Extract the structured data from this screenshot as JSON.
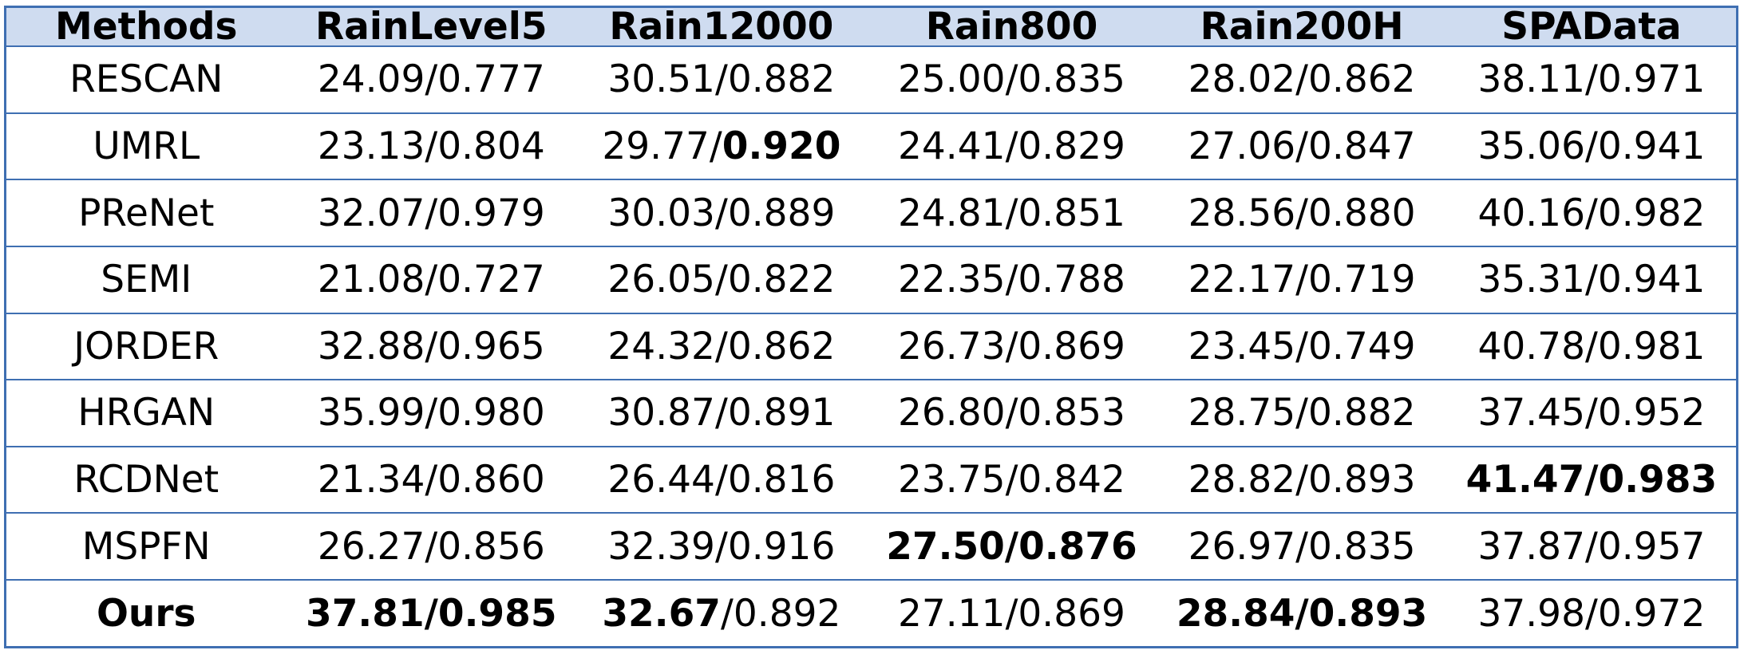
{
  "chart_data": {
    "type": "table",
    "columns": [
      "Methods",
      "RainLevel5",
      "Rain12000",
      "Rain800",
      "Rain200H",
      "SPAData"
    ],
    "rows": [
      {
        "method": "RESCAN",
        "cells": [
          {
            "psnr": "24.09",
            "ssim": "0.777",
            "bold_psnr": false,
            "bold_ssim": false
          },
          {
            "psnr": "30.51",
            "ssim": "0.882",
            "bold_psnr": false,
            "bold_ssim": false
          },
          {
            "psnr": "25.00",
            "ssim": "0.835",
            "bold_psnr": false,
            "bold_ssim": false
          },
          {
            "psnr": "28.02",
            "ssim": "0.862",
            "bold_psnr": false,
            "bold_ssim": false
          },
          {
            "psnr": "38.11",
            "ssim": "0.971",
            "bold_psnr": false,
            "bold_ssim": false
          }
        ]
      },
      {
        "method": "UMRL",
        "cells": [
          {
            "psnr": "23.13",
            "ssim": "0.804",
            "bold_psnr": false,
            "bold_ssim": false
          },
          {
            "psnr": "29.77",
            "ssim": "0.920",
            "bold_psnr": false,
            "bold_ssim": true
          },
          {
            "psnr": "24.41",
            "ssim": "0.829",
            "bold_psnr": false,
            "bold_ssim": false
          },
          {
            "psnr": "27.06",
            "ssim": "0.847",
            "bold_psnr": false,
            "bold_ssim": false
          },
          {
            "psnr": "35.06",
            "ssim": "0.941",
            "bold_psnr": false,
            "bold_ssim": false
          }
        ]
      },
      {
        "method": "PReNet",
        "cells": [
          {
            "psnr": "32.07",
            "ssim": "0.979",
            "bold_psnr": false,
            "bold_ssim": false
          },
          {
            "psnr": "30.03",
            "ssim": "0.889",
            "bold_psnr": false,
            "bold_ssim": false
          },
          {
            "psnr": "24.81",
            "ssim": "0.851",
            "bold_psnr": false,
            "bold_ssim": false
          },
          {
            "psnr": "28.56",
            "ssim": "0.880",
            "bold_psnr": false,
            "bold_ssim": false
          },
          {
            "psnr": "40.16",
            "ssim": "0.982",
            "bold_psnr": false,
            "bold_ssim": false
          }
        ]
      },
      {
        "method": "SEMI",
        "cells": [
          {
            "psnr": "21.08",
            "ssim": "0.727",
            "bold_psnr": false,
            "bold_ssim": false
          },
          {
            "psnr": "26.05",
            "ssim": "0.822",
            "bold_psnr": false,
            "bold_ssim": false
          },
          {
            "psnr": "22.35",
            "ssim": "0.788",
            "bold_psnr": false,
            "bold_ssim": false
          },
          {
            "psnr": "22.17",
            "ssim": "0.719",
            "bold_psnr": false,
            "bold_ssim": false
          },
          {
            "psnr": "35.31",
            "ssim": "0.941",
            "bold_psnr": false,
            "bold_ssim": false
          }
        ]
      },
      {
        "method": "JORDER",
        "cells": [
          {
            "psnr": "32.88",
            "ssim": "0.965",
            "bold_psnr": false,
            "bold_ssim": false
          },
          {
            "psnr": "24.32",
            "ssim": "0.862",
            "bold_psnr": false,
            "bold_ssim": false
          },
          {
            "psnr": "26.73",
            "ssim": "0.869",
            "bold_psnr": false,
            "bold_ssim": false
          },
          {
            "psnr": "23.45",
            "ssim": "0.749",
            "bold_psnr": false,
            "bold_ssim": false
          },
          {
            "psnr": "40.78",
            "ssim": "0.981",
            "bold_psnr": false,
            "bold_ssim": false
          }
        ]
      },
      {
        "method": "HRGAN",
        "cells": [
          {
            "psnr": "35.99",
            "ssim": "0.980",
            "bold_psnr": false,
            "bold_ssim": false
          },
          {
            "psnr": "30.87",
            "ssim": "0.891",
            "bold_psnr": false,
            "bold_ssim": false
          },
          {
            "psnr": "26.80",
            "ssim": "0.853",
            "bold_psnr": false,
            "bold_ssim": false
          },
          {
            "psnr": "28.75",
            "ssim": "0.882",
            "bold_psnr": false,
            "bold_ssim": false
          },
          {
            "psnr": "37.45",
            "ssim": "0.952",
            "bold_psnr": false,
            "bold_ssim": false
          }
        ]
      },
      {
        "method": "RCDNet",
        "cells": [
          {
            "psnr": "21.34",
            "ssim": "0.860",
            "bold_psnr": false,
            "bold_ssim": false
          },
          {
            "psnr": "26.44",
            "ssim": "0.816",
            "bold_psnr": false,
            "bold_ssim": false
          },
          {
            "psnr": "23.75",
            "ssim": "0.842",
            "bold_psnr": false,
            "bold_ssim": false
          },
          {
            "psnr": "28.82",
            "ssim": "0.893",
            "bold_psnr": false,
            "bold_ssim": false
          },
          {
            "psnr": "41.47",
            "ssim": "0.983",
            "bold_psnr": true,
            "bold_ssim": true
          }
        ]
      },
      {
        "method": "MSPFN",
        "cells": [
          {
            "psnr": "26.27",
            "ssim": "0.856",
            "bold_psnr": false,
            "bold_ssim": false
          },
          {
            "psnr": "32.39",
            "ssim": "0.916",
            "bold_psnr": false,
            "bold_ssim": false
          },
          {
            "psnr": "27.50",
            "ssim": "0.876",
            "bold_psnr": true,
            "bold_ssim": true
          },
          {
            "psnr": "26.97",
            "ssim": "0.835",
            "bold_psnr": false,
            "bold_ssim": false
          },
          {
            "psnr": "37.87",
            "ssim": "0.957",
            "bold_psnr": false,
            "bold_ssim": false
          }
        ]
      },
      {
        "method": "Ours",
        "method_bold": true,
        "cells": [
          {
            "psnr": "37.81",
            "ssim": "0.985",
            "bold_psnr": true,
            "bold_ssim": true
          },
          {
            "psnr": "32.67",
            "ssim": "0.892",
            "bold_psnr": true,
            "bold_ssim": false
          },
          {
            "psnr": "27.11",
            "ssim": "0.869",
            "bold_psnr": false,
            "bold_ssim": false
          },
          {
            "psnr": "28.84",
            "ssim": "0.893",
            "bold_psnr": true,
            "bold_ssim": true
          },
          {
            "psnr": "37.98",
            "ssim": "0.972",
            "bold_psnr": false,
            "bold_ssim": false
          }
        ]
      }
    ]
  },
  "colors": {
    "header_background": "#cfdcf0",
    "border": "#3f6fb2",
    "text": "#000000"
  }
}
